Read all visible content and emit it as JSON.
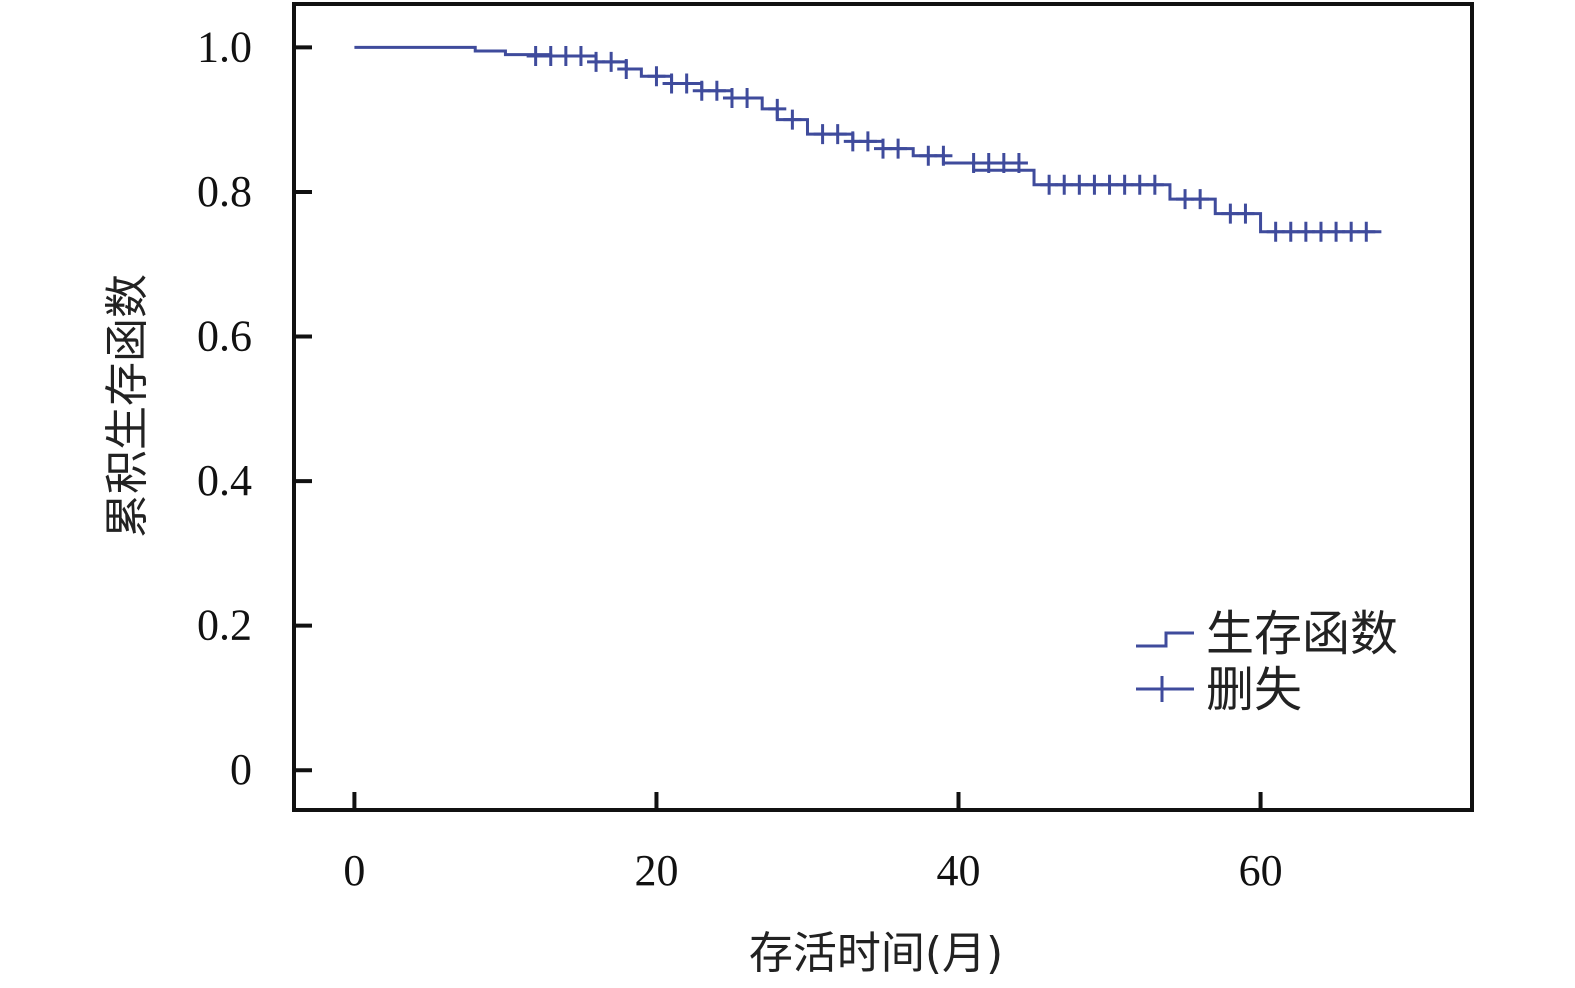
{
  "chart_data": {
    "type": "line",
    "title": "",
    "xlabel": "存活时间(月)",
    "ylabel": "累积生存函数",
    "xlim": [
      -4,
      74
    ],
    "ylim": [
      -0.055,
      1.06
    ],
    "x_ticks": [
      0,
      20,
      40,
      60
    ],
    "y_ticks": [
      0,
      0.2,
      0.4,
      0.6,
      0.8,
      1.0
    ],
    "x_tick_labels": [
      "0",
      "20",
      "40",
      "60"
    ],
    "y_tick_labels": [
      "0",
      "0.2",
      "0.4",
      "0.6",
      "0.8",
      "1.0"
    ],
    "grid": false,
    "legend_position": "bottom-right",
    "line_color": "#3f4b9c",
    "series": [
      {
        "name": "生存函数",
        "kind": "step",
        "x": [
          0,
          8,
          10,
          13,
          16,
          18,
          19,
          21,
          23,
          25,
          27,
          28,
          30,
          33,
          35,
          37,
          39,
          41,
          45,
          54,
          57,
          60,
          68
        ],
        "y": [
          1.0,
          0.995,
          0.99,
          0.988,
          0.98,
          0.97,
          0.96,
          0.95,
          0.94,
          0.93,
          0.915,
          0.9,
          0.88,
          0.87,
          0.86,
          0.85,
          0.84,
          0.83,
          0.81,
          0.79,
          0.77,
          0.745,
          0.745
        ]
      },
      {
        "name": "删失",
        "kind": "censor",
        "x": [
          12,
          13,
          14,
          15,
          16,
          17,
          18,
          20,
          21,
          22,
          23,
          24,
          25,
          26,
          28,
          29,
          31,
          32,
          33,
          34,
          35,
          36,
          38,
          39,
          41,
          42,
          43,
          44,
          46,
          47,
          48,
          49,
          50,
          51,
          52,
          53,
          55,
          56,
          58,
          59,
          61,
          62,
          63,
          64,
          65,
          66,
          67
        ],
        "y": [
          0.988,
          0.988,
          0.988,
          0.988,
          0.98,
          0.98,
          0.97,
          0.96,
          0.95,
          0.95,
          0.94,
          0.94,
          0.93,
          0.93,
          0.915,
          0.9,
          0.88,
          0.88,
          0.87,
          0.87,
          0.86,
          0.86,
          0.85,
          0.85,
          0.84,
          0.84,
          0.84,
          0.84,
          0.81,
          0.81,
          0.81,
          0.81,
          0.81,
          0.81,
          0.81,
          0.81,
          0.79,
          0.79,
          0.77,
          0.77,
          0.745,
          0.745,
          0.745,
          0.745,
          0.745,
          0.745,
          0.745
        ]
      }
    ]
  }
}
